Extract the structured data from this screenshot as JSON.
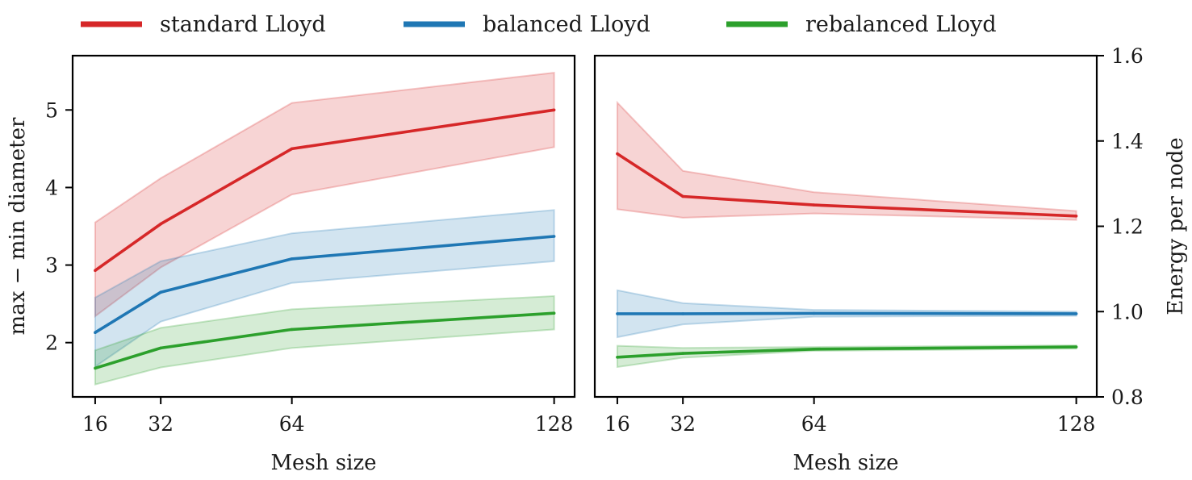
{
  "legend": [
    {
      "name": "standard Lloyd",
      "color": "#d62728"
    },
    {
      "name": "balanced Lloyd",
      "color": "#1f77b4"
    },
    {
      "name": "rebalanced Lloyd",
      "color": "#2ca02c"
    }
  ],
  "chart_data": [
    {
      "type": "line",
      "xlabel": "Mesh size",
      "ylabel": "max − min diameter",
      "x": [
        16,
        32,
        64,
        128
      ],
      "xticks": [
        "16",
        "32",
        "64",
        "128"
      ],
      "xlim": [
        10.5,
        133
      ],
      "ylim": [
        1.3,
        5.7
      ],
      "yticks": [
        "2",
        "3",
        "4",
        "5"
      ],
      "ytick_values": [
        2,
        3,
        4,
        5
      ],
      "y_axis_side": "left",
      "series": [
        {
          "name": "standard Lloyd",
          "color": "#d62728",
          "values": [
            2.93,
            3.53,
            4.5,
            5.0
          ],
          "lower": [
            2.34,
            2.97,
            3.91,
            4.52
          ],
          "upper": [
            3.55,
            4.12,
            5.09,
            5.48
          ]
        },
        {
          "name": "balanced Lloyd",
          "color": "#1f77b4",
          "values": [
            2.13,
            2.65,
            3.08,
            3.37
          ],
          "lower": [
            1.69,
            2.27,
            2.77,
            3.05
          ],
          "upper": [
            2.58,
            3.05,
            3.41,
            3.71
          ]
        },
        {
          "name": "rebalanced Lloyd",
          "color": "#2ca02c",
          "values": [
            1.67,
            1.93,
            2.17,
            2.38
          ],
          "lower": [
            1.46,
            1.68,
            1.93,
            2.17
          ],
          "upper": [
            1.9,
            2.19,
            2.43,
            2.6
          ]
        }
      ]
    },
    {
      "type": "line",
      "xlabel": "Mesh size",
      "ylabel": "Energy per node",
      "x": [
        16,
        32,
        64,
        128
      ],
      "xticks": [
        "16",
        "32",
        "64",
        "128"
      ],
      "xlim": [
        10.5,
        133
      ],
      "ylim": [
        0.8,
        1.6
      ],
      "yticks": [
        "0.8",
        "1.0",
        "1.2",
        "1.4",
        "1.6"
      ],
      "ytick_values": [
        0.8,
        1.0,
        1.2,
        1.4,
        1.6
      ],
      "y_axis_side": "right",
      "series": [
        {
          "name": "standard Lloyd",
          "color": "#d62728",
          "values": [
            1.37,
            1.27,
            1.25,
            1.224
          ],
          "lower": [
            1.24,
            1.22,
            1.23,
            1.215
          ],
          "upper": [
            1.49,
            1.33,
            1.28,
            1.236
          ]
        },
        {
          "name": "balanced Lloyd",
          "color": "#1f77b4",
          "values": [
            0.995,
            0.995,
            0.996,
            0.995
          ],
          "lower": [
            0.94,
            0.97,
            0.988,
            0.99
          ],
          "upper": [
            1.05,
            1.02,
            1.004,
            1.0
          ]
        },
        {
          "name": "rebalanced Lloyd",
          "color": "#2ca02c",
          "values": [
            0.893,
            0.902,
            0.912,
            0.917
          ],
          "lower": [
            0.87,
            0.892,
            0.908,
            0.913
          ],
          "upper": [
            0.92,
            0.915,
            0.917,
            0.921
          ]
        }
      ]
    }
  ]
}
